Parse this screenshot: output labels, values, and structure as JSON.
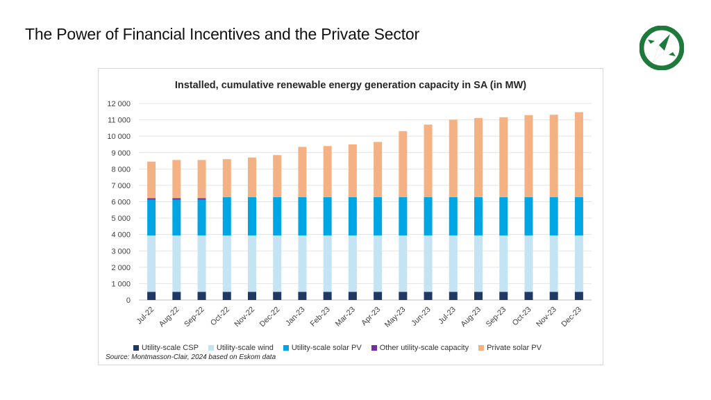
{
  "slide": {
    "title": "The Power of Financial Incentives and the Private Sector",
    "logo_icon": "green-compass-logo-icon"
  },
  "chart_data": {
    "type": "bar",
    "stacked": true,
    "title": "Installed, cumulative renewable energy generation capacity in SA (in MW)",
    "xlabel": "",
    "ylabel": "",
    "ylim": [
      0,
      12000
    ],
    "yticks": [
      0,
      1000,
      2000,
      3000,
      4000,
      5000,
      6000,
      7000,
      8000,
      9000,
      10000,
      11000,
      12000
    ],
    "ytick_labels": [
      "0",
      "1 000",
      "2 000",
      "3 000",
      "4 000",
      "5 000",
      "6 000",
      "7 000",
      "8 000",
      "9 000",
      "10 000",
      "11 000",
      "12 000"
    ],
    "grid": true,
    "legend_position": "bottom",
    "categories": [
      "Jul-22",
      "Aug-22",
      "Sep-22",
      "Oct-22",
      "Nov-22",
      "Dec-22",
      "Jan-23",
      "Feb-23",
      "Mar-23",
      "Apr-23",
      "May-23",
      "Jun-23",
      "Jul-23",
      "Aug-23",
      "Sep-23",
      "Oct-23",
      "Nov-23",
      "Dec-23"
    ],
    "series": [
      {
        "name": "Utility-scale CSP",
        "color": "#1f3864",
        "values": [
          500,
          500,
          500,
          500,
          500,
          500,
          500,
          500,
          500,
          500,
          500,
          500,
          500,
          500,
          500,
          500,
          500,
          500
        ]
      },
      {
        "name": "Utility-scale wind",
        "color": "#c5e4f3",
        "values": [
          3440,
          3440,
          3440,
          3440,
          3440,
          3440,
          3440,
          3440,
          3440,
          3440,
          3440,
          3440,
          3440,
          3440,
          3440,
          3440,
          3440,
          3440
        ]
      },
      {
        "name": "Utility-scale solar PV",
        "color": "#00a5e3",
        "values": [
          2180,
          2180,
          2180,
          2340,
          2340,
          2340,
          2340,
          2340,
          2340,
          2340,
          2340,
          2340,
          2340,
          2340,
          2340,
          2340,
          2340,
          2340
        ]
      },
      {
        "name": "Other utility-scale capacity",
        "color": "#7030a0",
        "values": [
          100,
          100,
          100,
          0,
          0,
          0,
          0,
          0,
          0,
          0,
          0,
          0,
          0,
          0,
          0,
          0,
          0,
          0
        ]
      },
      {
        "name": "Private solar PV",
        "color": "#f4b183",
        "values": [
          2230,
          2330,
          2330,
          2320,
          2420,
          2570,
          3070,
          3120,
          3220,
          3370,
          4030,
          4430,
          4730,
          4830,
          4880,
          5010,
          5030,
          5190
        ]
      }
    ],
    "source": "Source: Montmasson-Clair, 2024 based on Eskom data"
  }
}
